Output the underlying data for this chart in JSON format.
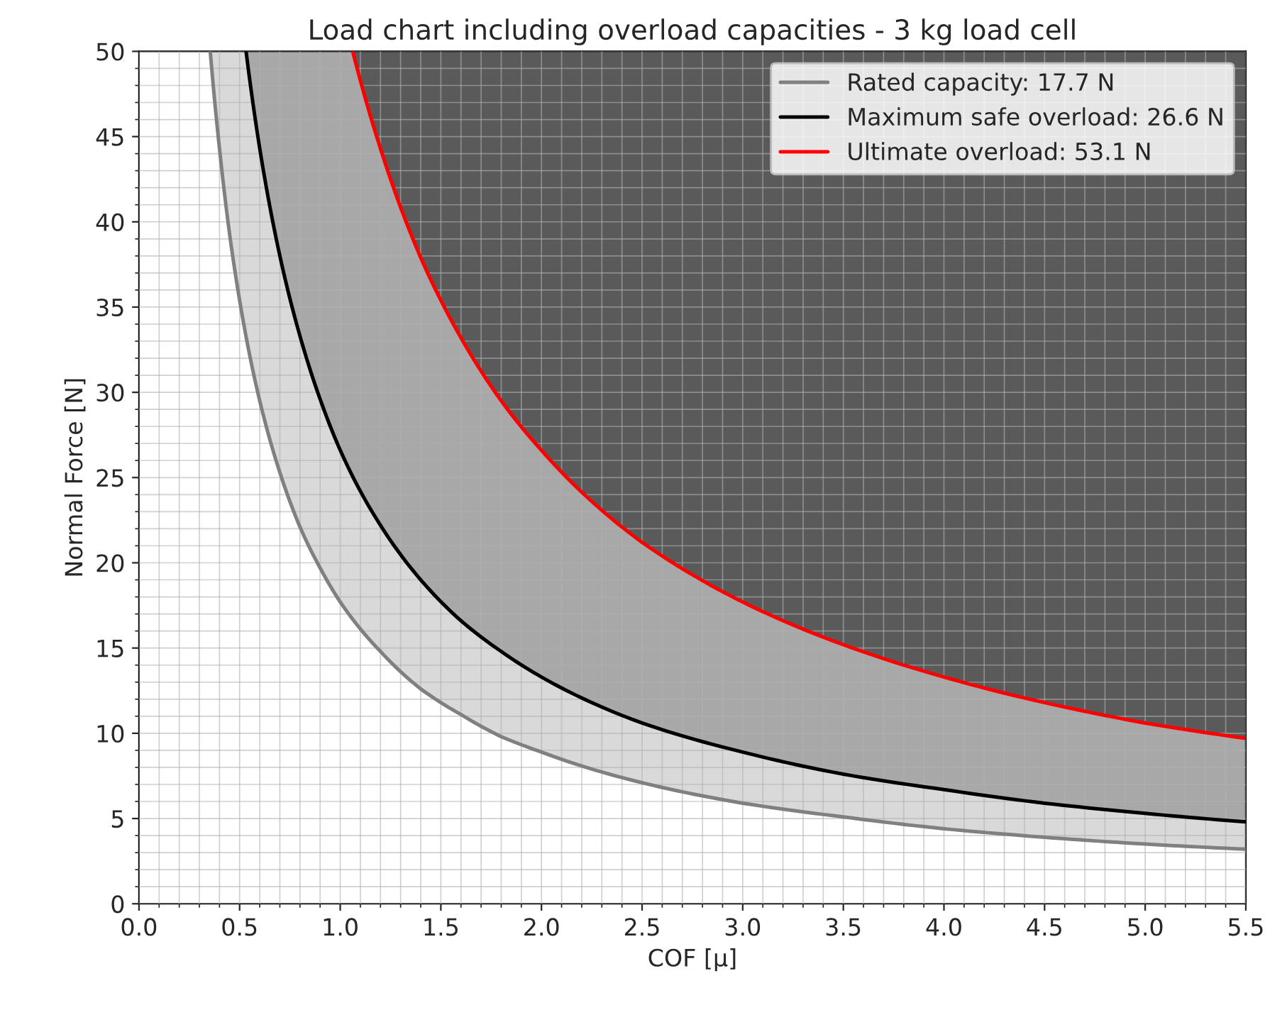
{
  "chart_data": {
    "type": "line",
    "title": "Load chart including overload capacities - 3 kg load cell",
    "xlabel": "COF [μ]",
    "ylabel": "Normal Force [N]",
    "xlim": [
      0,
      5.5
    ],
    "ylim": [
      0,
      50
    ],
    "xticks": [
      {
        "value": 0,
        "label": "0.0"
      },
      {
        "value": 0.5,
        "label": "0.5"
      },
      {
        "value": 1,
        "label": "1.0"
      },
      {
        "value": 1.5,
        "label": "1.5"
      },
      {
        "value": 2,
        "label": "2.0"
      },
      {
        "value": 2.5,
        "label": "2.5"
      },
      {
        "value": 3,
        "label": "3.0"
      },
      {
        "value": 3.5,
        "label": "3.5"
      },
      {
        "value": 4,
        "label": "4.0"
      },
      {
        "value": 4.5,
        "label": "4.5"
      },
      {
        "value": 5,
        "label": "5.0"
      },
      {
        "value": 5.5,
        "label": "5.5"
      }
    ],
    "yticks": [
      0,
      5,
      10,
      15,
      20,
      25,
      30,
      35,
      40,
      45,
      50
    ],
    "grid": true,
    "legend": "top right",
    "series": [
      {
        "name": "Rated capacity: 17.7 N",
        "color": "#808080",
        "x": [
          0.354,
          0.4,
          0.45,
          0.5,
          0.6,
          0.7,
          0.8,
          0.9,
          1.0,
          1.2,
          1.4,
          1.6,
          1.8,
          2.0,
          2.5,
          3.0,
          3.5,
          4.0,
          4.5,
          5.0,
          5.5
        ],
        "values": [
          50,
          44.3,
          39.3,
          35.4,
          29.5,
          25.3,
          22.1,
          19.7,
          17.7,
          14.8,
          12.6,
          11.1,
          9.8,
          8.9,
          7.1,
          5.9,
          5.1,
          4.4,
          3.9,
          3.5,
          3.2
        ]
      },
      {
        "name": "Maximum safe overload: 26.6 N",
        "color": "#000000",
        "x": [
          0.532,
          0.6,
          0.7,
          0.8,
          0.9,
          1.0,
          1.2,
          1.4,
          1.6,
          1.8,
          2.0,
          2.5,
          3.0,
          3.5,
          4.0,
          4.5,
          5.0,
          5.5
        ],
        "values": [
          50,
          44.3,
          38.0,
          33.3,
          29.6,
          26.6,
          22.2,
          19.0,
          16.6,
          14.8,
          13.3,
          10.6,
          8.9,
          7.6,
          6.7,
          5.9,
          5.3,
          4.8
        ]
      },
      {
        "name": "Ultimate overload: 53.1 N",
        "color": "#ff0000",
        "x": [
          1.062,
          1.2,
          1.4,
          1.6,
          1.8,
          2.0,
          2.25,
          2.5,
          2.75,
          3.0,
          3.5,
          4.0,
          4.5,
          5.0,
          5.5
        ],
        "values": [
          50,
          44.3,
          37.9,
          33.2,
          29.5,
          26.6,
          23.6,
          21.2,
          19.3,
          17.7,
          15.2,
          13.3,
          11.8,
          10.6,
          9.7
        ]
      }
    ]
  }
}
